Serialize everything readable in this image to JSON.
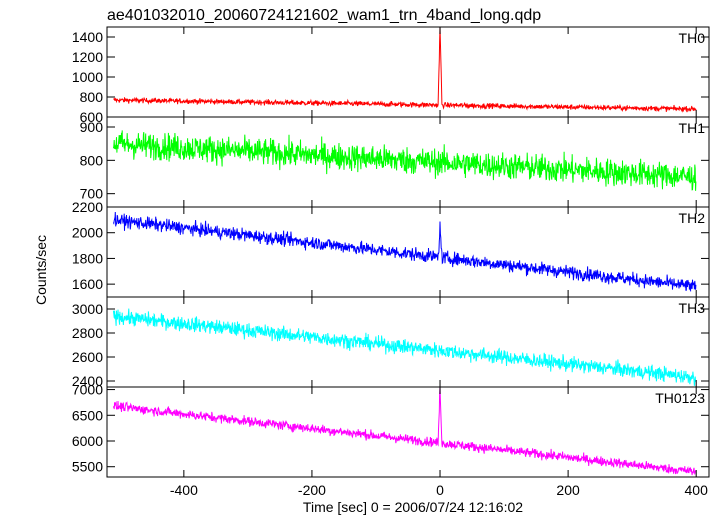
{
  "title": "ae401032010_20060724121602_wam1_trn_4band_long.qdp",
  "ylabel": "Counts/sec",
  "xlabel": "Time [sec] 0 = 2006/07/24 12:16:02",
  "chart_data": {
    "type": "line",
    "xlim": [
      -520,
      420
    ],
    "x_ticks": [
      -400,
      -200,
      0,
      200,
      400
    ],
    "panels": [
      {
        "name": "TH0",
        "color": "#ff0000",
        "ylim": [
          600,
          1500
        ],
        "ticks": [
          600,
          800,
          1000,
          1200,
          1400
        ],
        "trend": [
          [
            -510,
            770
          ],
          [
            400,
            680
          ]
        ],
        "noise": 25,
        "spike": {
          "x": 0,
          "peak": 1500
        }
      },
      {
        "name": "TH1",
        "color": "#00ff00",
        "ylim": [
          660,
          930
        ],
        "ticks": [
          700,
          800,
          900
        ],
        "trend": [
          [
            -510,
            850
          ],
          [
            400,
            750
          ]
        ],
        "noise": 40,
        "spike": null
      },
      {
        "name": "TH2",
        "color": "#0000ff",
        "ylim": [
          1500,
          2200
        ],
        "ticks": [
          1600,
          1800,
          2000,
          2200
        ],
        "trend": [
          [
            -510,
            2100
          ],
          [
            400,
            1580
          ]
        ],
        "noise": 50,
        "spike": {
          "x": 0,
          "peak": 2040
        }
      },
      {
        "name": "TH3",
        "color": "#00ffff",
        "ylim": [
          2350,
          3100
        ],
        "ticks": [
          2400,
          2600,
          2800,
          3000
        ],
        "trend": [
          [
            -510,
            2940
          ],
          [
            400,
            2430
          ]
        ],
        "noise": 60,
        "spike": null
      },
      {
        "name": "TH0123",
        "color": "#ff00ff",
        "ylim": [
          5300,
          7050
        ],
        "ticks": [
          5500,
          6000,
          6500,
          7000
        ],
        "trend": [
          [
            -510,
            6680
          ],
          [
            400,
            5400
          ]
        ],
        "noise": 90,
        "spike": {
          "x": 0,
          "peak": 7050
        }
      }
    ]
  }
}
